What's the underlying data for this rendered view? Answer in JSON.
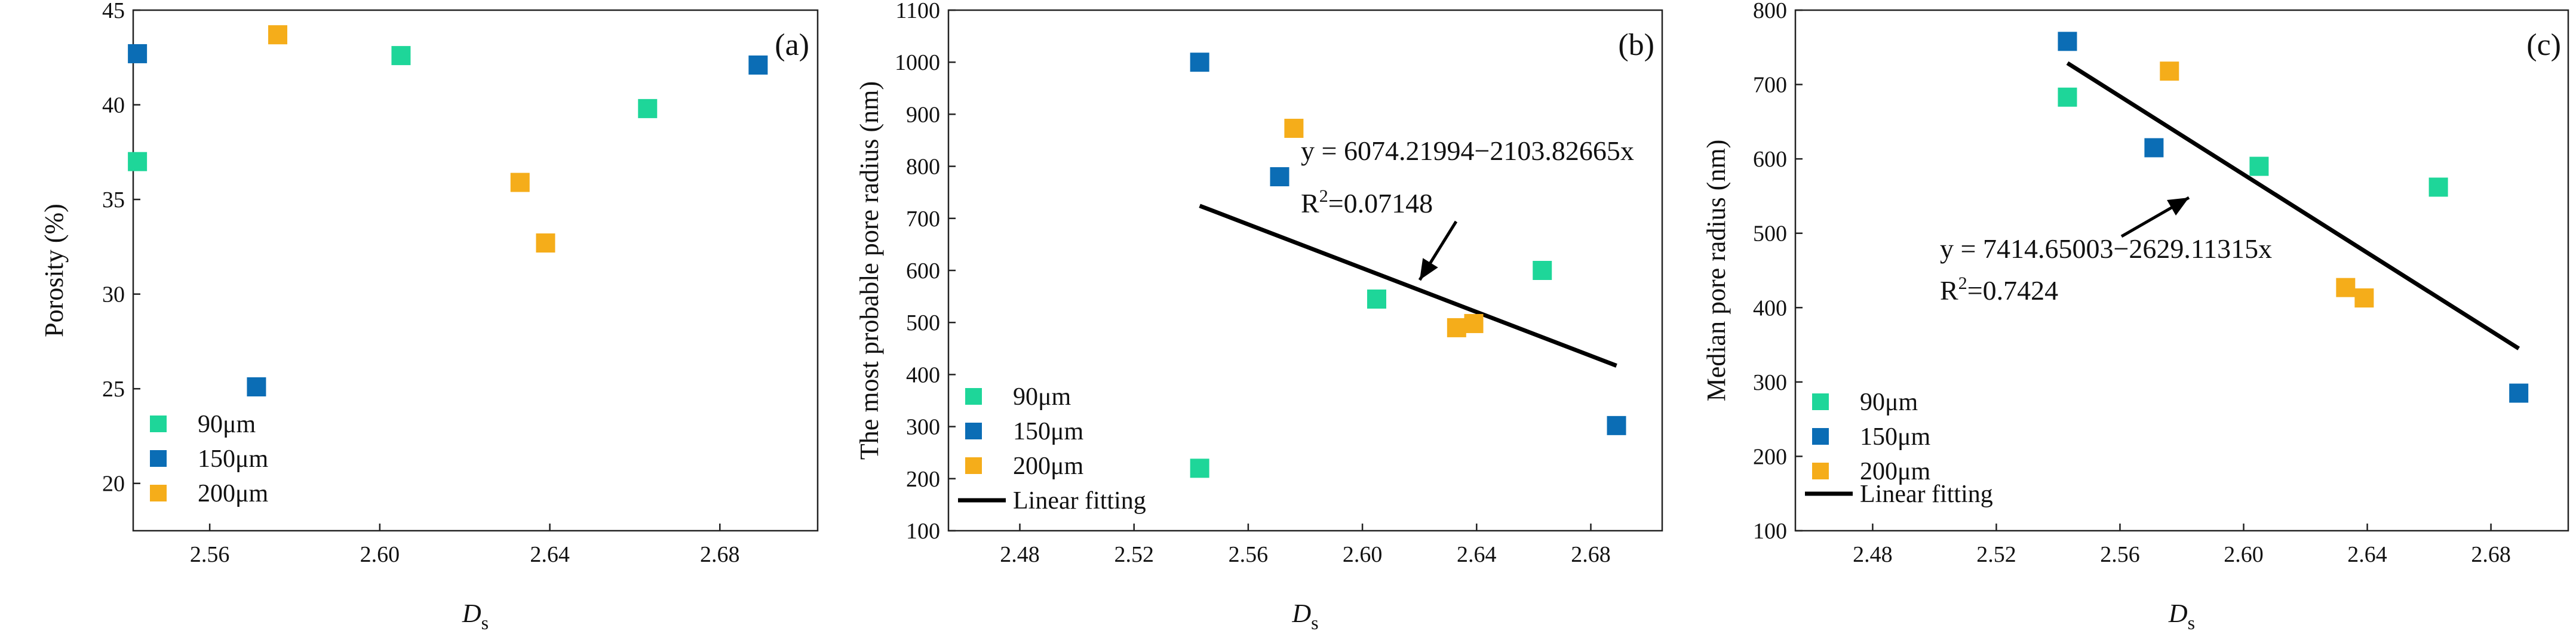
{
  "colors": {
    "s90": "#1ed699",
    "s150": "#0b6db5",
    "s200": "#f5ad1a",
    "fit": "#000000"
  },
  "chart_data": [
    {
      "type": "scatter",
      "panel_label": "(a)",
      "xlabel": "D",
      "xlabel_sub": "s",
      "ylabel": "Porosity (%)",
      "xlim": [
        2.542,
        2.703
      ],
      "ylim": [
        17.5,
        45
      ],
      "xticks": [
        "2.56",
        "2.60",
        "2.64",
        "2.68"
      ],
      "yticks": [
        "20",
        "25",
        "30",
        "35",
        "40",
        "45"
      ],
      "series": [
        {
          "name": "90μm",
          "color_key": "s90",
          "points": [
            [
              2.543,
              37.0
            ],
            [
              2.605,
              42.6
            ],
            [
              2.663,
              39.8
            ]
          ]
        },
        {
          "name": "150μm",
          "color_key": "s150",
          "points": [
            [
              2.543,
              42.7
            ],
            [
              2.571,
              25.1
            ],
            [
              2.689,
              42.1
            ]
          ]
        },
        {
          "name": "200μm",
          "color_key": "s200",
          "points": [
            [
              2.576,
              43.7
            ],
            [
              2.633,
              35.9
            ],
            [
              2.639,
              32.7
            ]
          ]
        }
      ]
    },
    {
      "type": "scatter",
      "panel_label": "(b)",
      "xlabel": "D",
      "xlabel_sub": "s",
      "ylabel": "The most probable pore radius (nm)",
      "xlim": [
        2.455,
        2.705
      ],
      "ylim": [
        100,
        1100
      ],
      "xticks": [
        "2.48",
        "2.52",
        "2.56",
        "2.60",
        "2.64",
        "2.68"
      ],
      "yticks": [
        "100",
        "200",
        "300",
        "400",
        "500",
        "600",
        "700",
        "800",
        "900",
        "1000",
        "1100"
      ],
      "series": [
        {
          "name": "90μm",
          "color_key": "s90",
          "points": [
            [
              2.543,
              220
            ],
            [
              2.605,
              545
            ],
            [
              2.663,
              600
            ]
          ]
        },
        {
          "name": "150μm",
          "color_key": "s150",
          "points": [
            [
              2.543,
              1000
            ],
            [
              2.571,
              780
            ],
            [
              2.689,
              302
            ]
          ]
        },
        {
          "name": "200μm",
          "color_key": "s200",
          "points": [
            [
              2.576,
              873
            ],
            [
              2.633,
              490
            ],
            [
              2.639,
              498
            ]
          ]
        }
      ],
      "fit": {
        "name": "Linear fitting",
        "x": [
          2.543,
          2.689
        ],
        "equation": "y = 6074.21994−2103.82665x",
        "r2_label": "R",
        "r2_sup": "2",
        "r2_value": "=0.07148"
      }
    },
    {
      "type": "scatter",
      "panel_label": "(c)",
      "xlabel": "D",
      "xlabel_sub": "s",
      "ylabel": "Median pore radius (nm)",
      "xlim": [
        2.455,
        2.705
      ],
      "ylim": [
        100,
        800
      ],
      "xticks": [
        "2.48",
        "2.52",
        "2.56",
        "2.60",
        "2.64",
        "2.68"
      ],
      "yticks": [
        "100",
        "200",
        "300",
        "400",
        "500",
        "600",
        "700",
        "800"
      ],
      "series": [
        {
          "name": "90μm",
          "color_key": "s90",
          "points": [
            [
              2.543,
              683
            ],
            [
              2.605,
              590
            ],
            [
              2.663,
              562
            ]
          ]
        },
        {
          "name": "150μm",
          "color_key": "s150",
          "points": [
            [
              2.543,
              758
            ],
            [
              2.571,
              615
            ],
            [
              2.689,
              285
            ]
          ]
        },
        {
          "name": "200μm",
          "color_key": "s200",
          "points": [
            [
              2.576,
              718
            ],
            [
              2.633,
              427
            ],
            [
              2.639,
              413
            ]
          ]
        }
      ],
      "fit": {
        "name": "Linear fitting",
        "x": [
          2.543,
          2.689
        ],
        "equation": "y = 7414.65003−2629.11315x",
        "r2_label": "R",
        "r2_sup": "2",
        "r2_value": "=0.7424"
      }
    }
  ]
}
